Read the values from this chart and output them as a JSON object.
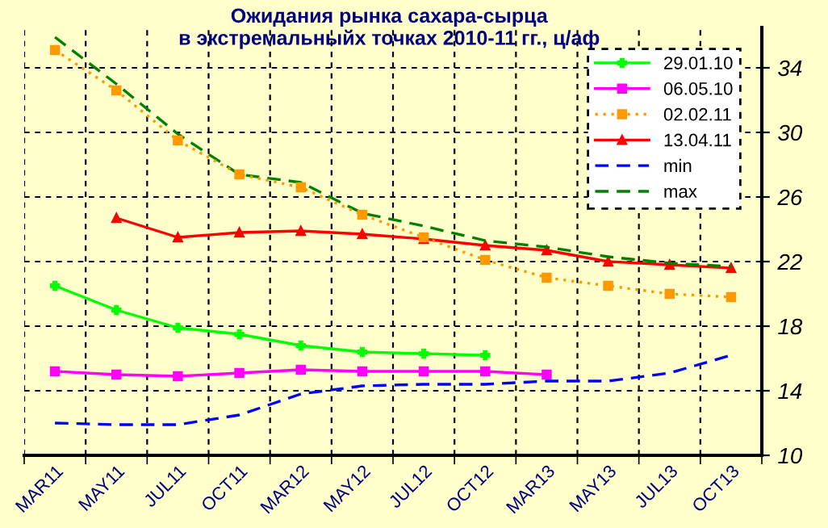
{
  "chart_data": {
    "type": "line",
    "title": "Ожидания рынка сахара-сырца\nв экстремальныйх точках 2010-11 гг., ц/аф",
    "categories": [
      "MAR11",
      "MAY11",
      "JUL11",
      "OCT11",
      "MAR12",
      "MAY12",
      "JUL12",
      "OCT12",
      "MAR13",
      "MAY13",
      "JUL13",
      "OCT13"
    ],
    "series": [
      {
        "name": "29.01.10",
        "color": "#00ff00",
        "marker": "cross",
        "line_style": "solid",
        "values": [
          20.5,
          19.0,
          17.9,
          17.5,
          16.8,
          16.4,
          16.3,
          16.2,
          null,
          null,
          null,
          null
        ]
      },
      {
        "name": "06.05.10",
        "color": "#ff00ff",
        "marker": "square",
        "line_style": "solid",
        "values": [
          15.2,
          15.0,
          14.9,
          15.1,
          15.3,
          15.2,
          15.2,
          15.2,
          15.0,
          null,
          null,
          null
        ]
      },
      {
        "name": "02.02.11",
        "color": "#ff9900",
        "marker": "square",
        "line_style": "dotted",
        "values": [
          35.1,
          32.6,
          29.5,
          27.4,
          26.6,
          24.9,
          23.5,
          22.1,
          21.0,
          20.5,
          20.0,
          19.8
        ]
      },
      {
        "name": "13.04.11",
        "color": "#ff0000",
        "marker": "triangle",
        "line_style": "solid",
        "values": [
          null,
          24.7,
          23.5,
          23.8,
          23.9,
          23.7,
          23.4,
          23.0,
          22.7,
          22.0,
          21.8,
          21.6
        ]
      },
      {
        "name": "min",
        "color": "#0000ff",
        "marker": "none",
        "line_style": "dashed",
        "values": [
          12.0,
          11.9,
          11.9,
          12.5,
          13.8,
          14.3,
          14.4,
          14.4,
          14.6,
          14.6,
          15.1,
          16.2
        ]
      },
      {
        "name": "max",
        "color": "#008000",
        "marker": "none",
        "line_style": "dashed",
        "values": [
          35.9,
          33.0,
          29.9,
          27.4,
          26.9,
          25.0,
          24.2,
          23.3,
          22.9,
          22.3,
          21.9,
          21.7
        ]
      }
    ],
    "ylim": [
      10,
      36.5
    ],
    "yticks": [
      10,
      14,
      18,
      22,
      26,
      30,
      34
    ],
    "grid": true,
    "legend": "top right"
  }
}
